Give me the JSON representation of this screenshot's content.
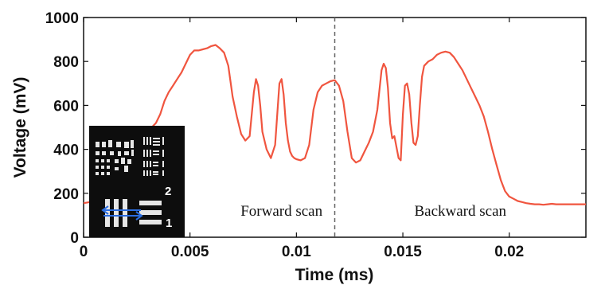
{
  "chart_data": {
    "type": "line",
    "title": "",
    "xlabel": "Time (ms)",
    "ylabel": "Voltage (mV)",
    "xlim": [
      0,
      0.0236
    ],
    "ylim": [
      0,
      1000
    ],
    "x_ticks": [
      0,
      0.005,
      0.01,
      0.015,
      0.02
    ],
    "x_tick_labels": [
      "0",
      "0.005",
      "0.01",
      "0.015",
      "0.02"
    ],
    "y_ticks": [
      0,
      200,
      400,
      600,
      800,
      1000
    ],
    "y_tick_labels": [
      "0",
      "200",
      "400",
      "600",
      "800",
      "1000"
    ],
    "grid": false,
    "line_color": "#f0553f",
    "divider": {
      "x": 0.0118,
      "style": "dashed",
      "color": "#666666"
    },
    "annotations": [
      {
        "text": "Forward scan",
        "x": 0.0093,
        "y": 120
      },
      {
        "text": "Backward scan",
        "x": 0.0177,
        "y": 120
      }
    ],
    "series": [
      {
        "x": [
          0,
          0.0003,
          0.0006,
          0.0009,
          0.0012,
          0.0015,
          0.0018,
          0.0021,
          0.0024,
          0.0027,
          0.003,
          0.0032,
          0.0034,
          0.0036,
          0.0038,
          0.004,
          0.0042,
          0.0044,
          0.0046,
          0.0048,
          0.005,
          0.0052,
          0.0054,
          0.0056,
          0.0058,
          0.006,
          0.0062,
          0.0064,
          0.0066,
          0.0068,
          0.007,
          0.0072,
          0.0074,
          0.0076,
          0.0078,
          0.008,
          0.0081,
          0.0082,
          0.0083,
          0.0084,
          0.0086,
          0.0088,
          0.009,
          0.0092,
          0.0093,
          0.0094,
          0.0095,
          0.0096,
          0.0097,
          0.0098,
          0.0099,
          0.01,
          0.0102,
          0.0104,
          0.0106,
          0.0108,
          0.011,
          0.0112,
          0.0114,
          0.0116,
          0.0118,
          0.012,
          0.0122,
          0.0124,
          0.0126,
          0.0128,
          0.013,
          0.0132,
          0.0134,
          0.0136,
          0.0138,
          0.014,
          0.0141,
          0.0142,
          0.0143,
          0.0144,
          0.0145,
          0.0146,
          0.0148,
          0.0149,
          0.015,
          0.0151,
          0.0152,
          0.0153,
          0.0154,
          0.0155,
          0.0156,
          0.0157,
          0.0158,
          0.0159,
          0.016,
          0.0162,
          0.0164,
          0.0166,
          0.0168,
          0.017,
          0.0172,
          0.0174,
          0.0176,
          0.0178,
          0.018,
          0.0182,
          0.0184,
          0.0186,
          0.0188,
          0.019,
          0.0192,
          0.0194,
          0.0196,
          0.0198,
          0.02,
          0.0202,
          0.0204,
          0.0206,
          0.0208,
          0.021,
          0.0212,
          0.0214,
          0.0216,
          0.0218,
          0.022,
          0.0222,
          0.0224,
          0.0226,
          0.0228,
          0.023,
          0.0232,
          0.0234,
          0.0236
        ],
        "values": [
          155,
          160,
          170,
          180,
          195,
          210,
          250,
          300,
          360,
          430,
          480,
          500,
          520,
          560,
          620,
          660,
          690,
          720,
          750,
          790,
          830,
          850,
          850,
          855,
          860,
          870,
          875,
          860,
          840,
          780,
          640,
          550,
          470,
          440,
          460,
          660,
          720,
          690,
          600,
          480,
          400,
          360,
          420,
          700,
          720,
          650,
          520,
          440,
          390,
          370,
          360,
          355,
          350,
          360,
          420,
          580,
          660,
          690,
          700,
          710,
          715,
          690,
          620,
          480,
          360,
          340,
          350,
          390,
          430,
          480,
          580,
          760,
          790,
          770,
          680,
          520,
          450,
          460,
          360,
          350,
          560,
          690,
          700,
          650,
          520,
          430,
          420,
          460,
          600,
          730,
          780,
          800,
          810,
          830,
          840,
          845,
          840,
          820,
          790,
          760,
          720,
          680,
          640,
          600,
          550,
          480,
          400,
          330,
          260,
          210,
          185,
          175,
          165,
          160,
          155,
          152,
          150,
          150,
          148,
          150,
          152,
          150,
          150,
          150,
          150,
          150,
          150,
          150,
          150
        ]
      }
    ]
  }
}
